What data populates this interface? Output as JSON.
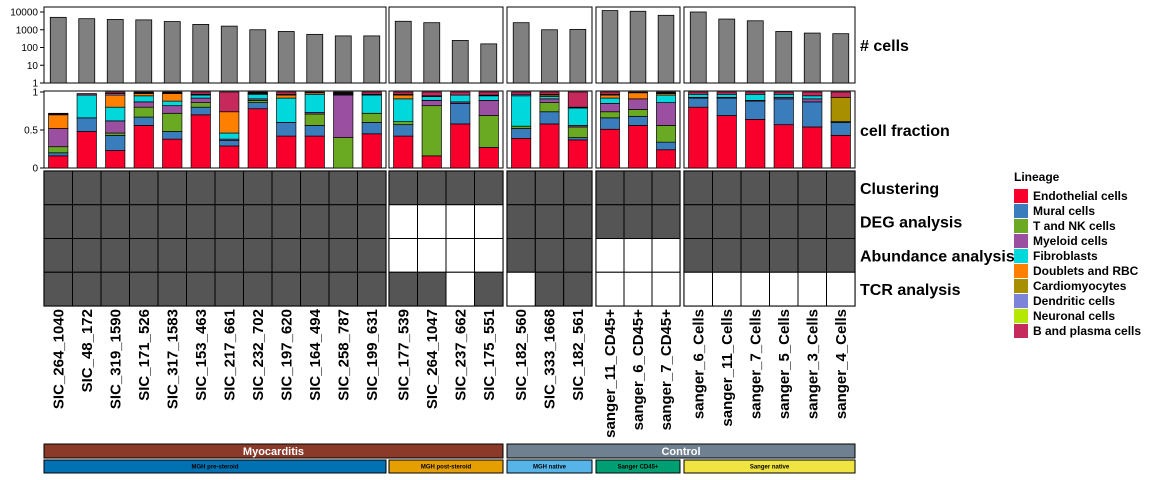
{
  "chart_data": {
    "type": "bar",
    "samples": [
      "SIC_264_1040",
      "SIC_48_172",
      "SIC_319_1590",
      "SIC_171_526",
      "SIC_317_1583",
      "SIC_153_463",
      "SIC_217_661",
      "SIC_232_702",
      "SIC_197_620",
      "SIC_164_494",
      "SIC_258_787",
      "SIC_199_631",
      "SIC_177_539",
      "SIC_264_1047",
      "SIC_237_662",
      "SIC_175_551",
      "SIC_182_560",
      "SIC_333_1668",
      "SIC_182_561",
      "sanger_11_CD45+",
      "sanger_6_CD45+",
      "sanger_7_CD45+",
      "sanger_6_Cells",
      "sanger_11_Cells",
      "sanger_7_Cells",
      "sanger_5_Cells",
      "sanger_3_Cells",
      "sanger_4_Cells"
    ],
    "groups": [
      {
        "label": "MGH pre-steroid",
        "color": "#0072B2",
        "text_color": "#000000",
        "count": 12
      },
      {
        "label": "MGH post-steroid",
        "color": "#E69F00",
        "text_color": "#000000",
        "count": 4
      },
      {
        "label": "MGH native",
        "color": "#56B4E9",
        "text_color": "#000000",
        "count": 3
      },
      {
        "label": "Sanger CD45+",
        "color": "#009E73",
        "text_color": "#000000",
        "count": 3
      },
      {
        "label": "Sanger native",
        "color": "#F0E442",
        "text_color": "#000000",
        "count": 6
      }
    ],
    "conditions": [
      {
        "label": "Myocarditis",
        "color": "#8B3A2A",
        "count": 16
      },
      {
        "label": "Control",
        "color": "#6F8090",
        "count": 12
      }
    ],
    "cell_counts": {
      "row_label": "# cells",
      "scale": "log10",
      "yticks": [
        "10000",
        "1000",
        "100",
        "10",
        "1"
      ],
      "ylim": [
        1,
        10000
      ],
      "values": [
        5000,
        4200,
        3800,
        3600,
        2900,
        2000,
        1600,
        1000,
        800,
        550,
        450,
        450,
        3000,
        2500,
        250,
        160,
        2500,
        1000,
        1050,
        12000,
        11000,
        6500,
        10000,
        4000,
        3200,
        800,
        650,
        600
      ]
    },
    "cell_fraction": {
      "row_label": "cell fraction",
      "yticks": [
        "1",
        "0.5",
        "0"
      ],
      "ylim": [
        0,
        1
      ],
      "series": [
        {
          "name": "Endothelial cells",
          "color": "#F8002B",
          "values": [
            0.16,
            0.48,
            0.23,
            0.56,
            0.38,
            0.7,
            0.29,
            0.78,
            0.42,
            0.42,
            0.0,
            0.45,
            0.42,
            0.16,
            0.58,
            0.27,
            0.39,
            0.58,
            0.37,
            0.51,
            0.56,
            0.24,
            0.8,
            0.69,
            0.64,
            0.57,
            0.54,
            0.43
          ]
        },
        {
          "name": "Mural cells",
          "color": "#3A7DBC",
          "values": [
            0.04,
            0.18,
            0.2,
            0.11,
            0.1,
            0.1,
            0.07,
            0.08,
            0.18,
            0.14,
            0.0,
            0.15,
            0.15,
            0.0,
            0.27,
            0.0,
            0.13,
            0.16,
            0.03,
            0.15,
            0.12,
            0.1,
            0.12,
            0.23,
            0.24,
            0.34,
            0.33,
            0.17
          ]
        },
        {
          "name": "T and NK cells",
          "color": "#6AAA22",
          "values": [
            0.08,
            0.0,
            0.03,
            0.13,
            0.24,
            0.06,
            0.0,
            0.03,
            0.0,
            0.15,
            0.4,
            0.12,
            0.04,
            0.66,
            0.0,
            0.42,
            0.03,
            0.12,
            0.14,
            0.08,
            0.09,
            0.22,
            0.0,
            0.0,
            0.0,
            0.0,
            0.0,
            0.0
          ]
        },
        {
          "name": "Myeloid cells",
          "color": "#9A4FA0",
          "values": [
            0.24,
            0.0,
            0.16,
            0.07,
            0.1,
            0.06,
            0.02,
            0.02,
            0.0,
            0.02,
            0.56,
            0.0,
            0.0,
            0.07,
            0.02,
            0.2,
            0.0,
            0.05,
            0.02,
            0.11,
            0.14,
            0.3,
            0.01,
            0.01,
            0.01,
            0.02,
            0.04,
            0.0
          ]
        },
        {
          "name": "Fibroblasts",
          "color": "#00D8DC",
          "values": [
            0.0,
            0.3,
            0.18,
            0.08,
            0.06,
            0.04,
            0.08,
            0.06,
            0.32,
            0.24,
            0.01,
            0.24,
            0.3,
            0.05,
            0.09,
            0.06,
            0.4,
            0.03,
            0.23,
            0.07,
            0.0,
            0.1,
            0.04,
            0.04,
            0.08,
            0.04,
            0.04,
            0.01
          ]
        },
        {
          "name": "Doublets and RBC",
          "color": "#FF7F00",
          "values": [
            0.18,
            0.0,
            0.16,
            0.03,
            0.1,
            0.0,
            0.28,
            0.01,
            0.04,
            0.02,
            0.01,
            0.0,
            0.05,
            0.0,
            0.0,
            0.0,
            0.0,
            0.02,
            0.0,
            0.04,
            0.08,
            0.02,
            0.0,
            0.0,
            0.0,
            0.0,
            0.0,
            0.0
          ]
        },
        {
          "name": "Cardiomyocytes",
          "color": "#A88F00",
          "values": [
            0.0,
            0.0,
            0.0,
            0.0,
            0.0,
            0.0,
            0.0,
            0.0,
            0.0,
            0.0,
            0.0,
            0.0,
            0.0,
            0.0,
            0.0,
            0.0,
            0.0,
            0.0,
            0.0,
            0.0,
            0.0,
            0.0,
            0.0,
            0.0,
            0.0,
            0.0,
            0.0,
            0.32
          ]
        },
        {
          "name": "Dendritic cells",
          "color": "#7B84D8",
          "values": [
            0.01,
            0.0,
            0.02,
            0.01,
            0.01,
            0.01,
            0.0,
            0.01,
            0.01,
            0.0,
            0.01,
            0.01,
            0.01,
            0.01,
            0.0,
            0.01,
            0.02,
            0.01,
            0.01,
            0.01,
            0.0,
            0.01,
            0.0,
            0.0,
            0.0,
            0.0,
            0.0,
            0.0
          ]
        },
        {
          "name": "Neuronal cells",
          "color": "#B4E800",
          "values": [
            0.0,
            0.0,
            0.0,
            0.0,
            0.0,
            0.0,
            0.0,
            0.0,
            0.0,
            0.0,
            0.0,
            0.0,
            0.0,
            0.0,
            0.0,
            0.0,
            0.0,
            0.0,
            0.0,
            0.0,
            0.0,
            0.0,
            0.0,
            0.0,
            0.0,
            0.0,
            0.0,
            0.0
          ]
        },
        {
          "name": "B and plasma cells",
          "color": "#C62A5C",
          "values": [
            0.01,
            0.02,
            0.02,
            0.01,
            0.01,
            0.03,
            0.26,
            0.01,
            0.03,
            0.01,
            0.01,
            0.03,
            0.03,
            0.05,
            0.04,
            0.04,
            0.03,
            0.03,
            0.2,
            0.03,
            0.01,
            0.01,
            0.03,
            0.03,
            0.03,
            0.03,
            0.05,
            0.07
          ]
        }
      ]
    },
    "analysis_matrix": {
      "filled_color": "#555555",
      "empty_color": "#ffffff",
      "rows": [
        {
          "label": "Clustering",
          "values": [
            1,
            1,
            1,
            1,
            1,
            1,
            1,
            1,
            1,
            1,
            1,
            1,
            1,
            1,
            1,
            1,
            1,
            1,
            1,
            1,
            1,
            1,
            1,
            1,
            1,
            1,
            1,
            1
          ]
        },
        {
          "label": "DEG analysis",
          "values": [
            1,
            1,
            1,
            1,
            1,
            1,
            1,
            1,
            1,
            1,
            1,
            1,
            0,
            0,
            0,
            0,
            1,
            1,
            1,
            1,
            1,
            1,
            1,
            1,
            1,
            1,
            1,
            1
          ]
        },
        {
          "label": "Abundance analysis",
          "values": [
            1,
            1,
            1,
            1,
            1,
            1,
            1,
            1,
            1,
            1,
            1,
            1,
            0,
            0,
            0,
            0,
            1,
            1,
            1,
            0,
            0,
            0,
            1,
            1,
            1,
            1,
            1,
            1
          ]
        },
        {
          "label": "TCR analysis",
          "values": [
            1,
            1,
            1,
            1,
            1,
            1,
            1,
            1,
            1,
            1,
            1,
            1,
            1,
            1,
            0,
            1,
            0,
            1,
            1,
            0,
            0,
            0,
            0,
            0,
            0,
            0,
            0,
            0
          ]
        }
      ]
    },
    "legend": {
      "title": "Lineage",
      "placement": "right"
    }
  }
}
